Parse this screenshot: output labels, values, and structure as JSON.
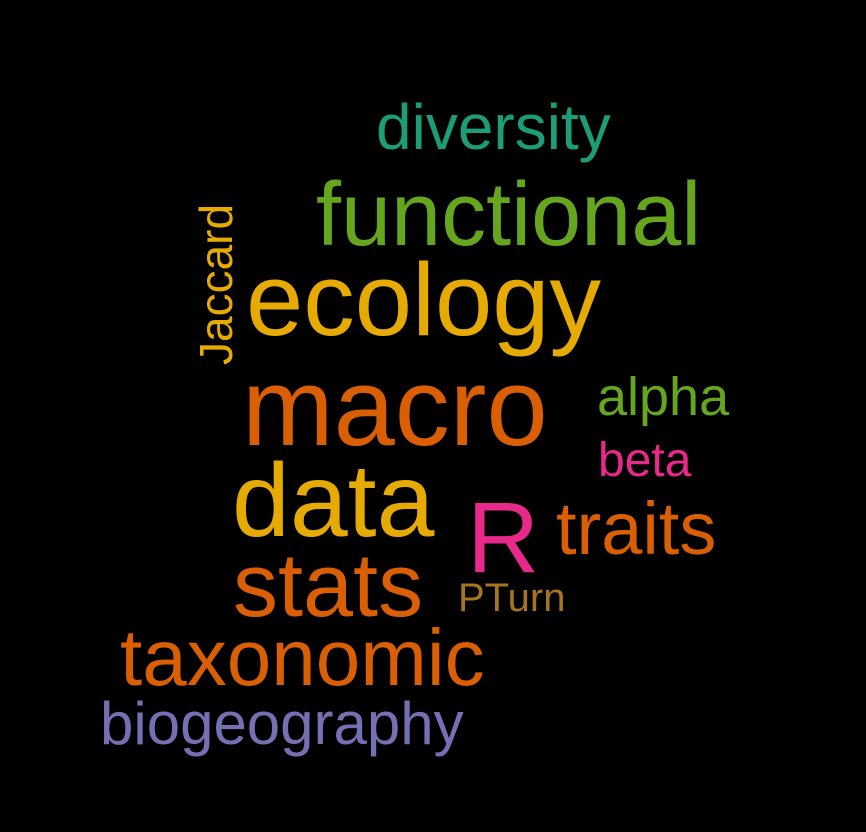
{
  "words": {
    "diversity": {
      "text": "diversity",
      "color": "#1B9E77"
    },
    "functional": {
      "text": "functional",
      "color": "#66A61E"
    },
    "ecology": {
      "text": "ecology",
      "color": "#E6AB02"
    },
    "jaccard": {
      "text": "Jaccard",
      "color": "#E6AB02"
    },
    "macro": {
      "text": "macro",
      "color": "#D95F02"
    },
    "alpha": {
      "text": "alpha",
      "color": "#66A61E"
    },
    "beta": {
      "text": "beta",
      "color": "#E7298A"
    },
    "data": {
      "text": "data",
      "color": "#E6AB02"
    },
    "r": {
      "text": "R",
      "color": "#E7298A"
    },
    "traits": {
      "text": "traits",
      "color": "#D95F02"
    },
    "stats": {
      "text": "stats",
      "color": "#D95F02"
    },
    "pturn": {
      "text": "PTurn",
      "color": "#A6761D"
    },
    "taxonomic": {
      "text": "taxonomic",
      "color": "#D95F02"
    },
    "biogeography": {
      "text": "biogeography",
      "color": "#7570B3"
    }
  },
  "background": "#000000"
}
